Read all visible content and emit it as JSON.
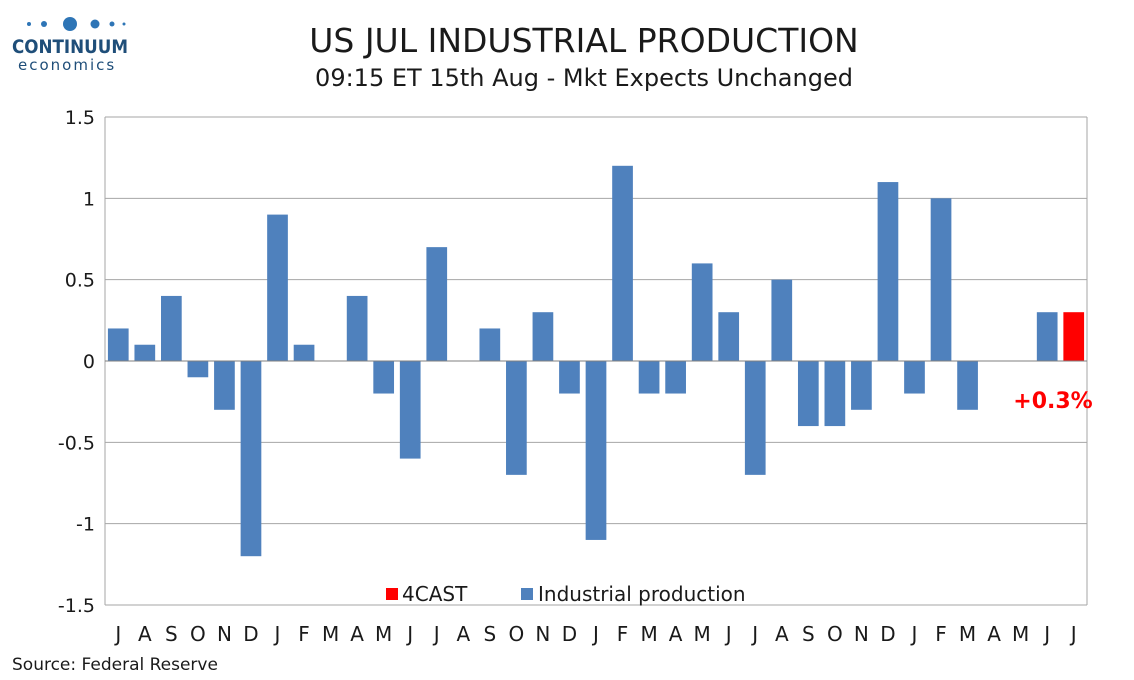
{
  "logo": {
    "brand": "CONTINUUM",
    "sub": "economics"
  },
  "title": "US JUL INDUSTRIAL PRODUCTION",
  "subtitle": "09:15 ET 15th Aug - Mkt Expects Unchanged",
  "source": "Source: Federal Reserve",
  "callout": "+0.3%",
  "colors": {
    "actual": "#4f81bd",
    "forecast": "#ff0000",
    "callout": "#ff0000",
    "grid": "#a6a6a6"
  },
  "chart_data": {
    "type": "bar",
    "categories": [
      "J",
      "A",
      "S",
      "O",
      "N",
      "D",
      "J",
      "F",
      "M",
      "A",
      "M",
      "J",
      "J",
      "A",
      "S",
      "O",
      "N",
      "D",
      "J",
      "F",
      "M",
      "A",
      "M",
      "J",
      "J",
      "A",
      "S",
      "O",
      "N",
      "D",
      "J",
      "F",
      "M",
      "A",
      "M",
      "J",
      "J"
    ],
    "series": [
      {
        "name": "Industrial production",
        "values": [
          0.2,
          0.1,
          0.4,
          -0.1,
          -0.3,
          -1.2,
          0.9,
          0.1,
          0.0,
          0.4,
          -0.2,
          -0.6,
          0.7,
          0.0,
          0.2,
          -0.7,
          0.3,
          -0.2,
          -1.1,
          1.2,
          -0.2,
          -0.2,
          0.6,
          0.3,
          -0.7,
          0.5,
          -0.4,
          -0.4,
          -0.3,
          1.1,
          -0.2,
          1.0,
          -0.3,
          0.0,
          0.0,
          0.3,
          null
        ]
      },
      {
        "name": "4CAST",
        "values": [
          null,
          null,
          null,
          null,
          null,
          null,
          null,
          null,
          null,
          null,
          null,
          null,
          null,
          null,
          null,
          null,
          null,
          null,
          null,
          null,
          null,
          null,
          null,
          null,
          null,
          null,
          null,
          null,
          null,
          null,
          null,
          null,
          null,
          null,
          null,
          null,
          0.3
        ]
      }
    ],
    "yticks": [
      "1.5",
      "1",
      "0.5",
      "0",
      "-0.5",
      "-1",
      "-1.5"
    ],
    "ylim": [
      -1.5,
      1.5
    ],
    "grid": true,
    "legend": {
      "position": "bottom-center",
      "entries": [
        "4CAST",
        "Industrial production"
      ]
    }
  }
}
